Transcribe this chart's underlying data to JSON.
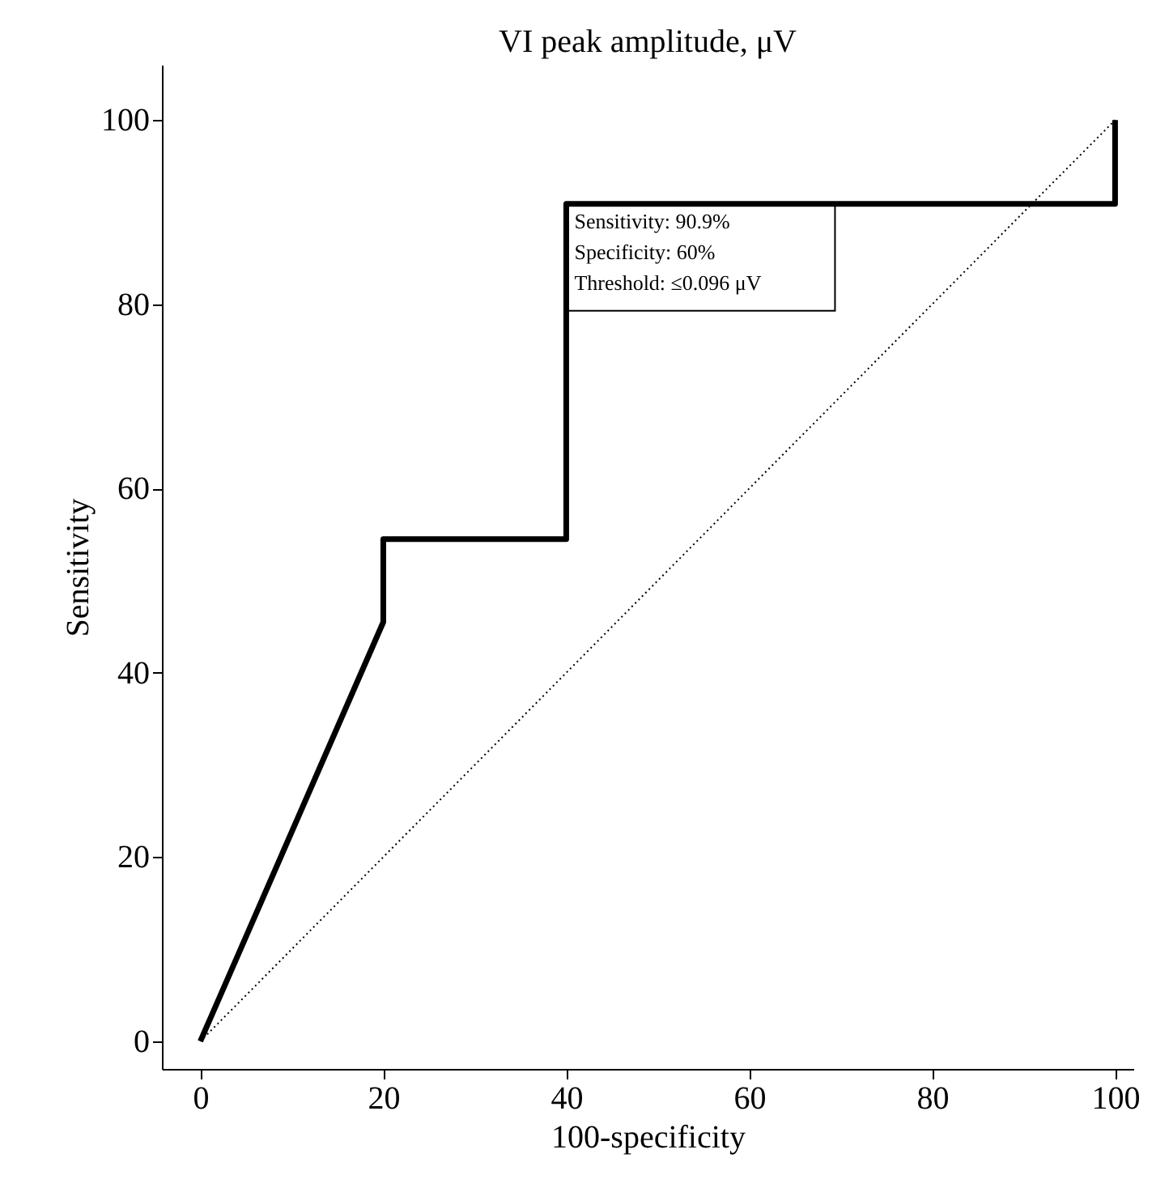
{
  "chart_data": {
    "type": "line",
    "title": "VI peak amplitude, μV",
    "xlabel": "100-specificity",
    "ylabel": "Sensitivity",
    "xlim": [
      -4.2,
      102
    ],
    "ylim": [
      -3,
      106
    ],
    "xticks": [
      0,
      20,
      40,
      60,
      80,
      100
    ],
    "yticks": [
      0,
      20,
      40,
      60,
      80,
      100
    ],
    "grid": false,
    "marker": "none",
    "series": [
      {
        "color": "#000000",
        "line_style": "solid",
        "x": [
          0,
          20,
          20,
          40,
          40,
          100,
          100
        ],
        "values": [
          0,
          45.5,
          54.5,
          54.5,
          90.9,
          90.9,
          100
        ]
      },
      {
        "color": "#000000",
        "line_style": "dotted",
        "x": [
          0,
          100
        ],
        "values": [
          0,
          100
        ]
      }
    ],
    "annotations": [
      {
        "text": "Sensitivity: 90.9%\nSpecificity: 60%\nThreshold: ≤0.096 μV",
        "x": 40,
        "y": 90.9
      }
    ]
  }
}
